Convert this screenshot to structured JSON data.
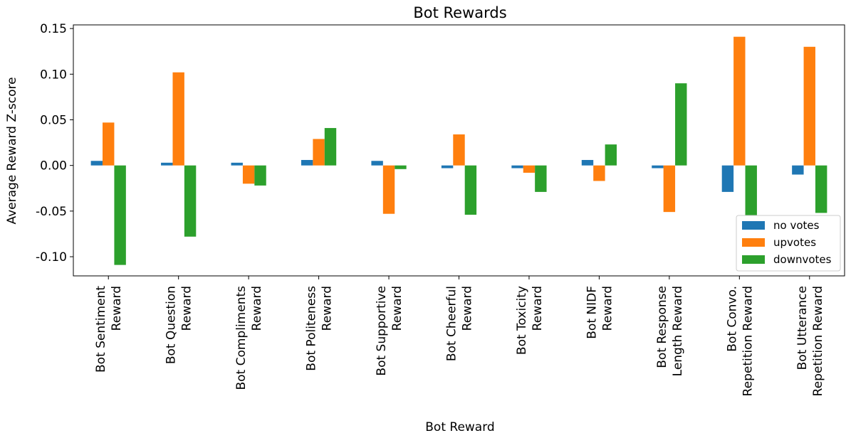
{
  "chart_data": {
    "type": "bar",
    "title": "Bot Rewards",
    "xlabel": "Bot Reward",
    "ylabel": "Average Reward Z-score",
    "categories": [
      "Bot Sentiment\nReward",
      "Bot Question\nReward",
      "Bot Compliments\nReward",
      "Bot Politeness\nReward",
      "Bot Supportive\nReward",
      "Bot Cheerful\nReward",
      "Bot Toxicity\nReward",
      "Bot NIDF\nReward",
      "Bot Response\nLength Reward",
      "Bot Convo.\nRepetition Reward",
      "Bot Utterance\nRepetition Reward"
    ],
    "series": [
      {
        "name": "no votes",
        "color": "#1f77b4",
        "values": [
          0.005,
          0.003,
          0.003,
          0.006,
          0.005,
          -0.003,
          -0.003,
          0.006,
          -0.003,
          -0.029,
          -0.01
        ]
      },
      {
        "name": "upvotes",
        "color": "#ff7f0e",
        "values": [
          0.047,
          0.102,
          -0.02,
          0.029,
          -0.053,
          0.034,
          -0.008,
          -0.017,
          -0.051,
          0.141,
          0.13
        ]
      },
      {
        "name": "downvotes",
        "color": "#2ca02c",
        "values": [
          -0.109,
          -0.078,
          -0.022,
          0.041,
          -0.004,
          -0.054,
          -0.029,
          0.023,
          0.09,
          -0.065,
          -0.052
        ]
      }
    ],
    "ylim": [
      -0.121,
      0.154
    ],
    "yticks": [
      0.15,
      {
        "value": 0.1,
        "label": "0.10"
      },
      0.05,
      {
        "value": 0,
        "label": "0.00"
      },
      -0.05,
      {
        "value": -0.1,
        "label": "-0.10"
      }
    ],
    "legend": "lower right"
  }
}
